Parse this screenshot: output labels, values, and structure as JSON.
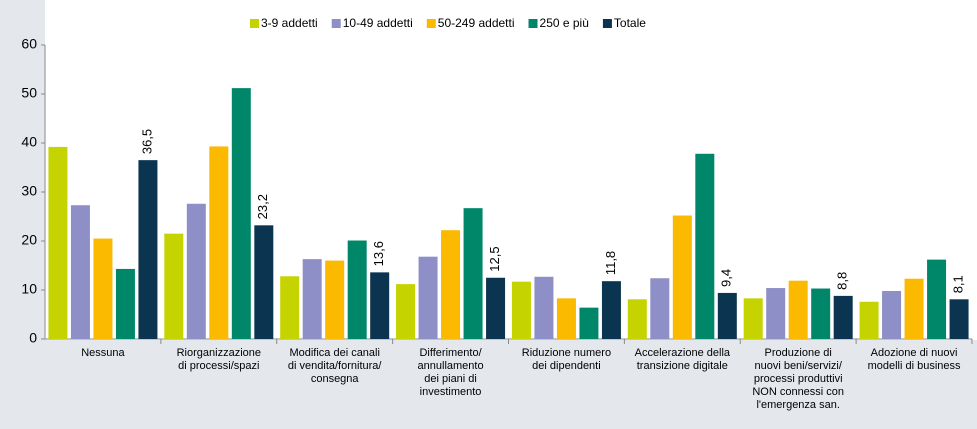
{
  "chart_data": {
    "type": "bar",
    "categories": [
      [
        "Nessuna"
      ],
      [
        "Riorganizzazione",
        "di processi/spazi"
      ],
      [
        "Modifica dei canali",
        "di vendita/fornitura/",
        "consegna"
      ],
      [
        "Differimento/",
        "annullamento",
        "dei piani di",
        "investimento"
      ],
      [
        "Riduzione numero",
        "dei dipendenti"
      ],
      [
        "Accelerazione della",
        "transizione digitale"
      ],
      [
        "Produzione di",
        "nuovi beni/servizi/",
        "processi produttivi",
        "NON connessi con",
        "l'emergenza san."
      ],
      [
        "Adozione di nuovi",
        "modelli di business"
      ]
    ],
    "series": [
      {
        "name": "3-9 addetti",
        "color": "#c5d300",
        "values": [
          39.2,
          21.5,
          12.8,
          11.2,
          11.7,
          8.1,
          8.3,
          7.6
        ]
      },
      {
        "name": "10-49 addetti",
        "color": "#8e8fc7",
        "values": [
          27.3,
          27.6,
          16.3,
          16.8,
          12.7,
          12.4,
          10.4,
          9.8
        ]
      },
      {
        "name": "50-249 addetti",
        "color": "#fbb900",
        "values": [
          20.5,
          39.3,
          16.0,
          22.2,
          8.3,
          25.2,
          11.9,
          12.3
        ]
      },
      {
        "name": "250 e più",
        "color": "#00876a",
        "values": [
          14.3,
          51.2,
          20.1,
          26.7,
          6.4,
          37.8,
          10.3,
          16.2
        ]
      },
      {
        "name": "Totale",
        "color": "#0b3451",
        "values": [
          36.5,
          23.2,
          13.6,
          12.5,
          11.8,
          9.4,
          8.8,
          8.1
        ],
        "value_labels": [
          "36,5",
          "23,2",
          "13,6",
          "12,5",
          "11,8",
          "9,4",
          "8,8",
          "8,1"
        ]
      }
    ],
    "ylim": [
      0,
      60
    ],
    "yticks": [
      0,
      10,
      20,
      30,
      40,
      50,
      60
    ],
    "grid": false,
    "legend": "top"
  }
}
